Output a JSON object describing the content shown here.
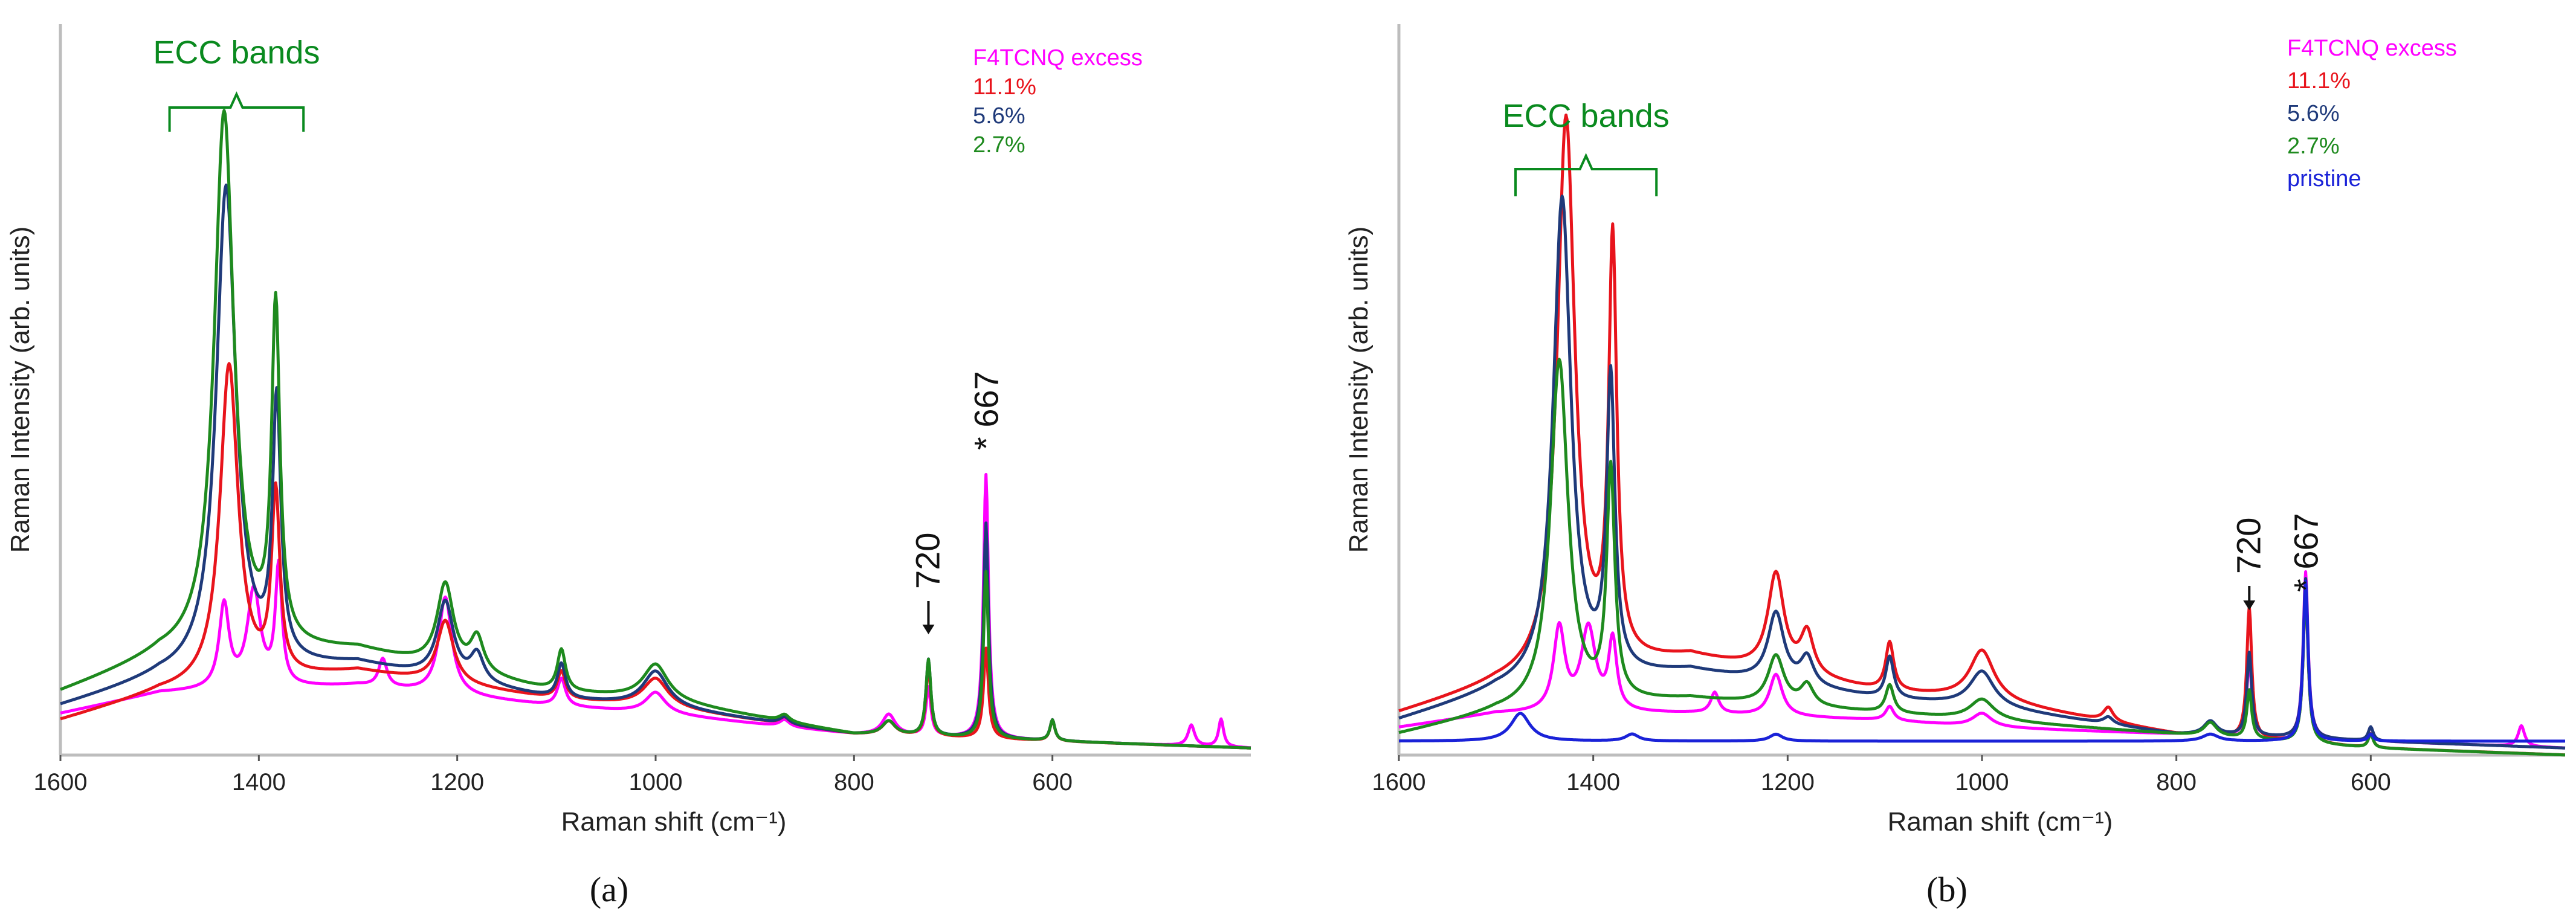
{
  "colors": {
    "magenta": "#ff00ff",
    "red": "#e8141c",
    "navy": "#1f3a7a",
    "green": "#1e8a1e",
    "blue": "#1a22d8",
    "ecc": "#0a8a1f"
  },
  "chart_data": [
    {
      "type": "line",
      "panel": "a",
      "caption": "(a)",
      "xlabel": "Raman shift (cm⁻¹)",
      "ylabel": "Raman Intensity (arb. units)",
      "xlim": [
        1600,
        400
      ],
      "xreverse": true,
      "ylim": [
        0,
        100
      ],
      "grid": false,
      "xticks": [
        1600,
        1400,
        1200,
        1000,
        800,
        600
      ],
      "ecc_label": "ECC bands",
      "ecc_range": [
        1490,
        1355
      ],
      "annotations": [
        {
          "text": "720",
          "x": 725
        },
        {
          "text": "* 667",
          "x": 667
        }
      ],
      "legend_title": "F4TCNQ excess",
      "legend": [
        {
          "label": "11.1%",
          "color": "#e8141c"
        },
        {
          "label": "5.6%",
          "color": "#1f3a7a"
        },
        {
          "label": "2.7%",
          "color": "#1e8a1e"
        }
      ],
      "series": [
        {
          "name": "F4TCNQ excess",
          "color": "#ff00ff",
          "baseline": [
            [
              1600,
              6
            ],
            [
              1500,
              9
            ],
            [
              1300,
              10
            ],
            [
              1100,
              7
            ],
            [
              1000,
              6
            ],
            [
              800,
              3
            ],
            [
              600,
              2
            ],
            [
              400,
              1
            ]
          ],
          "peaks": [
            [
              1435,
              12,
              6
            ],
            [
              1405,
              14,
              8
            ],
            [
              1380,
              17,
              4
            ],
            [
              1275,
              4,
              5
            ],
            [
              1212,
              14,
              8
            ],
            [
              1095,
              4,
              5
            ],
            [
              1000,
              3,
              12
            ],
            [
              870,
              1,
              6
            ],
            [
              765,
              3,
              8
            ],
            [
              725,
              7,
              3
            ],
            [
              667,
              38,
              3
            ],
            [
              600,
              3,
              3
            ],
            [
              460,
              3,
              4
            ],
            [
              430,
              4,
              3
            ]
          ]
        },
        {
          "name": "11.1%",
          "color": "#e8141c",
          "baseline": [
            [
              1600,
              5
            ],
            [
              1500,
              9
            ],
            [
              1300,
              12
            ],
            [
              1100,
              8
            ],
            [
              1000,
              7
            ],
            [
              800,
              3
            ],
            [
              600,
              2
            ],
            [
              400,
              1
            ]
          ],
          "peaks": [
            [
              1430,
              46,
              11
            ],
            [
              1383,
              26,
              5
            ],
            [
              1212,
              9,
              10
            ],
            [
              1095,
              4,
              5
            ],
            [
              1000,
              4,
              15
            ],
            [
              870,
              1,
              6
            ],
            [
              765,
              2,
              8
            ],
            [
              725,
              10,
              3
            ],
            [
              667,
              13,
              3
            ],
            [
              600,
              3,
              3
            ]
          ]
        },
        {
          "name": "5.6%",
          "color": "#1f3a7a",
          "baseline": [
            [
              1600,
              7
            ],
            [
              1500,
              11
            ],
            [
              1300,
              13
            ],
            [
              1100,
              8
            ],
            [
              1000,
              7
            ],
            [
              800,
              3
            ],
            [
              600,
              2
            ],
            [
              400,
              1
            ]
          ],
          "peaks": [
            [
              1433,
              70,
              12
            ],
            [
              1382,
              37,
              5
            ],
            [
              1212,
              11,
              10
            ],
            [
              1180,
              4,
              8
            ],
            [
              1095,
              5,
              5
            ],
            [
              1000,
              5,
              15
            ],
            [
              870,
              1,
              6
            ],
            [
              765,
              2,
              8
            ],
            [
              725,
              11,
              3
            ],
            [
              667,
              31,
              3
            ],
            [
              600,
              3,
              3
            ]
          ]
        },
        {
          "name": "2.7%",
          "color": "#1e8a1e",
          "baseline": [
            [
              1600,
              9
            ],
            [
              1500,
              14
            ],
            [
              1300,
              15
            ],
            [
              1100,
              9
            ],
            [
              1000,
              8
            ],
            [
              800,
              3
            ],
            [
              600,
              2
            ],
            [
              400,
              1
            ]
          ],
          "peaks": [
            [
              1435,
              78,
              12
            ],
            [
              1383,
              48,
              5
            ],
            [
              1212,
              12,
              10
            ],
            [
              1180,
              5,
              8
            ],
            [
              1095,
              6,
              5
            ],
            [
              1000,
              5,
              15
            ],
            [
              870,
              1,
              6
            ],
            [
              765,
              2,
              8
            ],
            [
              725,
              11,
              3
            ],
            [
              667,
              24,
              3
            ],
            [
              600,
              3,
              3
            ]
          ]
        }
      ]
    },
    {
      "type": "line",
      "panel": "b",
      "caption": "(b)",
      "xlabel": "Raman shift (cm⁻¹)",
      "ylabel": "Raman Intensity (arb. units)",
      "xlim": [
        1600,
        400
      ],
      "xreverse": true,
      "ylim": [
        0,
        100
      ],
      "grid": false,
      "xticks": [
        1600,
        1400,
        1200,
        1000,
        800,
        600
      ],
      "ecc_label": "ECC bands",
      "ecc_range": [
        1480,
        1335
      ],
      "annotations": [
        {
          "text": "720",
          "x": 725
        },
        {
          "text": "* 667",
          "x": 667
        }
      ],
      "legend_title": "F4TCNQ excess",
      "legend": [
        {
          "label": "11.1%",
          "color": "#e8141c"
        },
        {
          "label": "5.6%",
          "color": "#1f3a7a"
        },
        {
          "label": "2.7%",
          "color": "#1e8a1e"
        },
        {
          "label": "pristine",
          "color": "#1a22d8"
        }
      ],
      "series": [
        {
          "name": "F4TCNQ excess",
          "color": "#ff00ff",
          "baseline": [
            [
              1600,
              4
            ],
            [
              1500,
              6
            ],
            [
              1300,
              6
            ],
            [
              1100,
              5
            ],
            [
              1000,
              4
            ],
            [
              800,
              3
            ],
            [
              600,
              2
            ],
            [
              400,
              1
            ]
          ],
          "peaks": [
            [
              1435,
              12,
              7
            ],
            [
              1405,
              12,
              9
            ],
            [
              1380,
              10,
              5
            ],
            [
              1275,
              3,
              5
            ],
            [
              1212,
              6,
              8
            ],
            [
              1095,
              2,
              5
            ],
            [
              1000,
              2,
              12
            ],
            [
              765,
              2,
              8
            ],
            [
              725,
              11,
              3
            ],
            [
              667,
              24,
              3
            ],
            [
              600,
              2,
              3
            ],
            [
              445,
              3,
              4
            ]
          ]
        },
        {
          "name": "11.1%",
          "color": "#e8141c",
          "baseline": [
            [
              1600,
              6
            ],
            [
              1500,
              10
            ],
            [
              1300,
              14
            ],
            [
              1100,
              9
            ],
            [
              1000,
              8
            ],
            [
              800,
              3
            ],
            [
              600,
              1
            ],
            [
              400,
              0
            ]
          ],
          "peaks": [
            [
              1428,
              80,
              11
            ],
            [
              1380,
              60,
              5
            ],
            [
              1212,
              14,
              10
            ],
            [
              1180,
              6,
              8
            ],
            [
              1095,
              7,
              5
            ],
            [
              1000,
              7,
              15
            ],
            [
              870,
              2,
              6
            ],
            [
              765,
              2,
              8
            ],
            [
              725,
              19,
              3
            ],
            [
              667,
              22,
              3
            ],
            [
              600,
              2,
              3
            ]
          ]
        },
        {
          "name": "5.6%",
          "color": "#1f3a7a",
          "baseline": [
            [
              1600,
              5
            ],
            [
              1500,
              9
            ],
            [
              1300,
              12
            ],
            [
              1100,
              8
            ],
            [
              1000,
              7
            ],
            [
              800,
              3
            ],
            [
              600,
              2
            ],
            [
              400,
              1
            ]
          ],
          "peaks": [
            [
              1432,
              70,
              11
            ],
            [
              1382,
              42,
              5
            ],
            [
              1212,
              10,
              10
            ],
            [
              1180,
              4,
              8
            ],
            [
              1095,
              6,
              5
            ],
            [
              1000,
              5,
              15
            ],
            [
              870,
              1,
              6
            ],
            [
              765,
              2,
              8
            ],
            [
              725,
              12,
              3
            ],
            [
              667,
              23,
              3
            ],
            [
              600,
              2,
              3
            ]
          ]
        },
        {
          "name": "2.7%",
          "color": "#1e8a1e",
          "baseline": [
            [
              1600,
              3
            ],
            [
              1500,
              6
            ],
            [
              1300,
              8
            ],
            [
              1100,
              6
            ],
            [
              1000,
              5
            ],
            [
              800,
              3
            ],
            [
              600,
              1
            ],
            [
              400,
              0
            ]
          ],
          "peaks": [
            [
              1435,
              50,
              11
            ],
            [
              1382,
              33,
              5
            ],
            [
              1212,
              7,
              10
            ],
            [
              1180,
              3,
              8
            ],
            [
              1095,
              4,
              5
            ],
            [
              1000,
              3,
              15
            ],
            [
              765,
              2,
              8
            ],
            [
              725,
              7,
              3
            ],
            [
              667,
              22,
              3
            ],
            [
              600,
              2,
              3
            ]
          ]
        },
        {
          "name": "pristine",
          "color": "#1a22d8",
          "baseline": [
            [
              1600,
              2
            ],
            [
              1400,
              2
            ],
            [
              1200,
              2
            ],
            [
              1000,
              2
            ],
            [
              800,
              2
            ],
            [
              600,
              2
            ],
            [
              400,
              2
            ]
          ],
          "peaks": [
            [
              1475,
              4,
              12
            ],
            [
              1360,
              1,
              8
            ],
            [
              1212,
              1,
              8
            ],
            [
              765,
              1,
              10
            ],
            [
              667,
              23,
              3
            ],
            [
              600,
              1,
              3
            ]
          ]
        }
      ]
    }
  ]
}
